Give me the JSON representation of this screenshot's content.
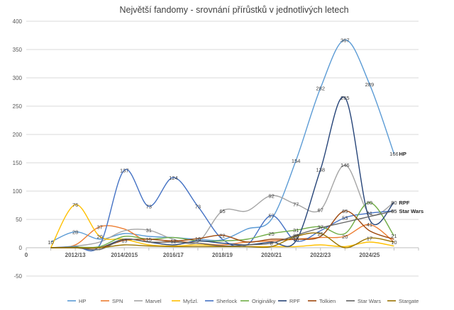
{
  "chart_data": {
    "type": "line",
    "title": "Největší fandomy - srovnání přírůstků v jednotlivých letech",
    "xlabel": "",
    "ylabel": "",
    "x": [
      1,
      2,
      3,
      4,
      5,
      6,
      7,
      8,
      9,
      10,
      11,
      12,
      13,
      14,
      15,
      16,
      17,
      18,
      19,
      20,
      21,
      22,
      23,
      24,
      25,
      26,
      27,
      28,
      29,
      30,
      31,
      32,
      33
    ],
    "x_tick_values": [
      0,
      4,
      8,
      12,
      16,
      20,
      24,
      28,
      32
    ],
    "x_tick_labels": [
      "0",
      "2012/13",
      "2014/2015",
      "2016/17",
      "2018/19",
      "2020/21",
      "2022/23",
      "2024/25",
      ""
    ],
    "xlim": [
      0,
      32
    ],
    "ylim": [
      -50,
      400
    ],
    "y_ticks": [
      -50,
      0,
      50,
      100,
      150,
      200,
      250,
      300,
      350,
      400
    ],
    "grid": true,
    "legend_position": "bottom",
    "series": [
      {
        "name": "HP",
        "color": "#5b9bd5",
        "points": [
          [
            2,
            10
          ],
          [
            4,
            28
          ],
          [
            6,
            15
          ],
          [
            8,
            25
          ],
          [
            10,
            20
          ],
          [
            12,
            18
          ],
          [
            14,
            15
          ],
          [
            16,
            14
          ],
          [
            18,
            33
          ],
          [
            20,
            50
          ],
          [
            22,
            154
          ],
          [
            24,
            282
          ],
          [
            26,
            367
          ],
          [
            28,
            289
          ],
          [
            30,
            166
          ]
        ],
        "labels": [
          [
            2,
            "10"
          ],
          [
            4,
            "28"
          ],
          [
            22,
            "154"
          ],
          [
            24,
            "282"
          ],
          [
            26,
            "367"
          ],
          [
            28,
            "289"
          ],
          [
            30,
            "166"
          ]
        ],
        "end_label": "HP"
      },
      {
        "name": "SPN",
        "color": "#ed7d31",
        "points": [
          [
            2,
            0
          ],
          [
            4,
            5
          ],
          [
            6,
            37
          ],
          [
            8,
            33
          ],
          [
            10,
            10
          ],
          [
            12,
            12
          ],
          [
            14,
            8
          ],
          [
            16,
            5
          ],
          [
            18,
            10
          ],
          [
            20,
            12
          ],
          [
            22,
            15
          ],
          [
            24,
            18
          ],
          [
            26,
            20
          ],
          [
            28,
            41
          ],
          [
            30,
            10
          ]
        ],
        "labels": [
          [
            6,
            "37"
          ],
          [
            26,
            "20"
          ],
          [
            28,
            "41"
          ]
        ]
      },
      {
        "name": "Marvel",
        "color": "#a5a5a5",
        "points": [
          [
            2,
            0
          ],
          [
            4,
            3
          ],
          [
            6,
            10
          ],
          [
            8,
            30
          ],
          [
            10,
            31
          ],
          [
            12,
            15
          ],
          [
            14,
            10
          ],
          [
            16,
            65
          ],
          [
            18,
            65
          ],
          [
            20,
            92
          ],
          [
            22,
            77
          ],
          [
            24,
            67
          ],
          [
            26,
            146
          ],
          [
            28,
            60
          ],
          [
            30,
            80
          ]
        ],
        "labels": [
          [
            10,
            "31"
          ],
          [
            16,
            "65"
          ],
          [
            20,
            "92"
          ],
          [
            22,
            "77"
          ],
          [
            24,
            "67"
          ],
          [
            26,
            "146"
          ],
          [
            30,
            "80"
          ]
        ]
      },
      {
        "name": "Myšzl.",
        "color": "#ffc000",
        "points": [
          [
            2,
            0
          ],
          [
            4,
            76
          ],
          [
            6,
            20
          ],
          [
            8,
            15
          ],
          [
            10,
            5
          ],
          [
            12,
            3
          ],
          [
            14,
            5
          ],
          [
            16,
            3
          ],
          [
            18,
            2
          ],
          [
            20,
            2
          ],
          [
            22,
            2
          ],
          [
            24,
            5
          ],
          [
            26,
            2
          ],
          [
            28,
            10
          ],
          [
            30,
            3
          ]
        ],
        "labels": [
          [
            4,
            "76"
          ],
          [
            6,
            "20"
          ]
        ]
      },
      {
        "name": "Sherlock",
        "color": "#4472c4",
        "points": [
          [
            2,
            0
          ],
          [
            4,
            2
          ],
          [
            6,
            5
          ],
          [
            8,
            137
          ],
          [
            10,
            73
          ],
          [
            12,
            124
          ],
          [
            14,
            73
          ],
          [
            16,
            15
          ],
          [
            18,
            5
          ],
          [
            20,
            57
          ],
          [
            22,
            12
          ],
          [
            24,
            30
          ],
          [
            26,
            53
          ],
          [
            28,
            61
          ],
          [
            30,
            65
          ]
        ],
        "labels": [
          [
            8,
            "137"
          ],
          [
            10,
            "73"
          ],
          [
            12,
            "124"
          ],
          [
            14,
            "73"
          ],
          [
            20,
            "57"
          ],
          [
            26,
            "53"
          ],
          [
            28,
            "61"
          ],
          [
            30,
            "65"
          ]
        ]
      },
      {
        "name": "Originálky",
        "color": "#70ad47",
        "points": [
          [
            2,
            0
          ],
          [
            4,
            1
          ],
          [
            6,
            2
          ],
          [
            8,
            20
          ],
          [
            10,
            15
          ],
          [
            12,
            18
          ],
          [
            14,
            12
          ],
          [
            16,
            12
          ],
          [
            18,
            15
          ],
          [
            20,
            25
          ],
          [
            22,
            31
          ],
          [
            24,
            37
          ],
          [
            26,
            25
          ],
          [
            28,
            80
          ],
          [
            30,
            21
          ]
        ],
        "labels": [
          [
            20,
            "25"
          ],
          [
            22,
            "31"
          ],
          [
            24,
            "37"
          ],
          [
            28,
            "80"
          ],
          [
            30,
            "21"
          ]
        ]
      },
      {
        "name": "RPF",
        "color": "#264478",
        "points": [
          [
            2,
            0
          ],
          [
            4,
            0
          ],
          [
            6,
            0
          ],
          [
            8,
            15
          ],
          [
            10,
            10
          ],
          [
            12,
            5
          ],
          [
            14,
            12
          ],
          [
            16,
            8
          ],
          [
            18,
            5
          ],
          [
            20,
            10
          ],
          [
            22,
            12
          ],
          [
            24,
            138
          ],
          [
            26,
            265
          ],
          [
            28,
            50
          ],
          [
            30,
            80
          ]
        ],
        "labels": [
          [
            24,
            "138"
          ],
          [
            26,
            "265"
          ]
        ],
        "end_label": "RPF"
      },
      {
        "name": "Tolkien",
        "color": "#9e480e",
        "points": [
          [
            2,
            0
          ],
          [
            4,
            0
          ],
          [
            6,
            0
          ],
          [
            8,
            13
          ],
          [
            10,
            15
          ],
          [
            12,
            12
          ],
          [
            14,
            16
          ],
          [
            16,
            22
          ],
          [
            18,
            10
          ],
          [
            20,
            15
          ],
          [
            22,
            15
          ],
          [
            24,
            20
          ],
          [
            26,
            65
          ],
          [
            28,
            30
          ],
          [
            30,
            15
          ]
        ],
        "labels": [
          [
            8,
            "13"
          ],
          [
            10,
            "15"
          ],
          [
            12,
            "12"
          ],
          [
            14,
            "16"
          ],
          [
            16,
            "22"
          ],
          [
            22,
            "15"
          ],
          [
            26,
            "65"
          ]
        ]
      },
      {
        "name": "Star Wars",
        "color": "#636363",
        "points": [
          [
            2,
            0
          ],
          [
            4,
            0
          ],
          [
            6,
            -3
          ],
          [
            8,
            15
          ],
          [
            10,
            10
          ],
          [
            12,
            10
          ],
          [
            14,
            8
          ],
          [
            16,
            3
          ],
          [
            18,
            5
          ],
          [
            20,
            8
          ],
          [
            22,
            22
          ],
          [
            24,
            35
          ],
          [
            26,
            45
          ],
          [
            28,
            55
          ],
          [
            30,
            65
          ]
        ],
        "labels": [
          [
            20,
            "8"
          ],
          [
            22,
            "22"
          ],
          [
            30,
            "65"
          ]
        ],
        "end_label": "Star Wars"
      },
      {
        "name": "Stargate",
        "color": "#997300",
        "points": [
          [
            2,
            0
          ],
          [
            4,
            0
          ],
          [
            6,
            0
          ],
          [
            8,
            5
          ],
          [
            10,
            3
          ],
          [
            12,
            2
          ],
          [
            14,
            2
          ],
          [
            16,
            2
          ],
          [
            18,
            2
          ],
          [
            20,
            2
          ],
          [
            22,
            20
          ],
          [
            24,
            25
          ],
          [
            26,
            0
          ],
          [
            28,
            17
          ],
          [
            30,
            10
          ]
        ],
        "labels": [
          [
            22,
            "20"
          ],
          [
            24,
            "25"
          ],
          [
            28,
            "17"
          ],
          [
            30,
            "10"
          ]
        ]
      }
    ]
  }
}
